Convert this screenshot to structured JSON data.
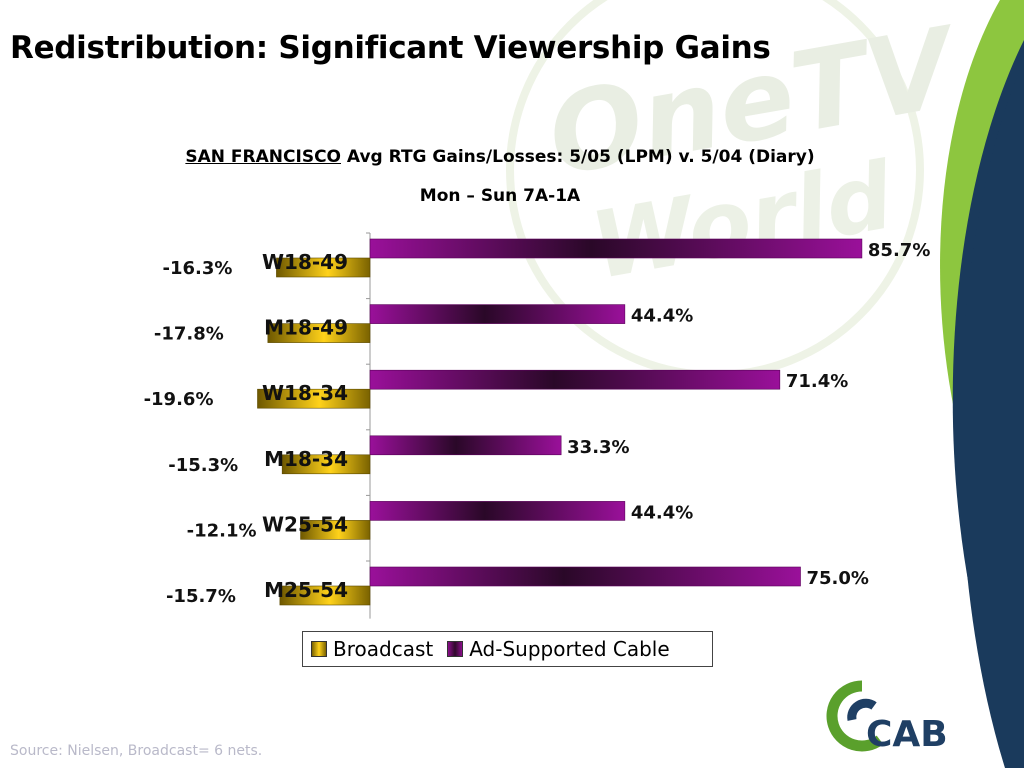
{
  "slide": {
    "title": "Redistribution: Significant Viewership Gains",
    "source": "Source:  Nielsen, Broadcast= 6 nets."
  },
  "chart_data": {
    "type": "bar",
    "orientation": "horizontal",
    "title_city": "SAN FRANCISCO",
    "title_rest": " Avg RTG Gains/Losses: 5/05 (LPM) v. 5/04 (Diary)",
    "subtitle": "Mon – Sun 7A-1A",
    "categories": [
      "W18-49",
      "M18-49",
      "W18-34",
      "M18-34",
      "W25-54",
      "M25-54"
    ],
    "series": [
      {
        "name": "Broadcast",
        "values": [
          -16.3,
          -17.8,
          -19.6,
          -15.3,
          -12.1,
          -15.7
        ],
        "labels": [
          "-16.3%",
          "-17.8%",
          "-19.6%",
          "-15.3%",
          "-12.1%",
          "-15.7%"
        ],
        "color": "#f2c200"
      },
      {
        "name": "Ad-Supported Cable",
        "values": [
          85.7,
          44.4,
          71.4,
          33.3,
          44.4,
          75.0
        ],
        "labels": [
          "85.7%",
          "44.4%",
          "71.4%",
          "33.3%",
          "44.4%",
          "75.0%"
        ],
        "color": "#800080"
      }
    ],
    "value_axis_visible": false,
    "grid": false,
    "legend_position": "bottom"
  },
  "colors": {
    "green_band": "#8dc63f",
    "navy_band": "#1a3a5c",
    "broadcast": "#f2c200",
    "cable": "#800080",
    "logo_green": "#5aa02c",
    "logo_navy": "#1f3f64"
  },
  "logo": {
    "text": "CAB"
  }
}
